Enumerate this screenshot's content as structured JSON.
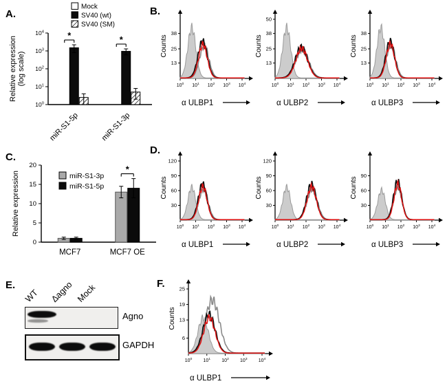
{
  "figure_labels": {
    "a": "A.",
    "b": "B.",
    "c": "C.",
    "d": "D.",
    "e": "E.",
    "f": "F."
  },
  "colors": {
    "bar_black": "#0b0b0b",
    "bar_gray": "#a9a9a9",
    "flow_fill_gray": "#cccccc",
    "flow_line_gray": "#8a8a8a",
    "flow_line_black": "#0f0f0f",
    "flow_line_red": "#e11212"
  },
  "panel_e": {
    "lanes": [
      "WT",
      "Δagno",
      "Mock"
    ],
    "blots": [
      {
        "label": "Agno"
      },
      {
        "label": "GAPDH"
      }
    ]
  },
  "chart_data": [
    {
      "id": "A",
      "type": "bar",
      "scale": "log",
      "ylabel_lines": [
        "Relative expression",
        "(log scale)"
      ],
      "ylim": [
        1,
        10000
      ],
      "yticks_exponents": [
        0,
        1,
        2,
        3,
        4
      ],
      "categories": [
        "miR-S1-5p",
        "miR-S1-3p"
      ],
      "series": [
        {
          "name": "Mock",
          "style": "white",
          "values": [
            1,
            1
          ],
          "errors": [
            0,
            0
          ]
        },
        {
          "name": "SV40 (wt)",
          "style": "black",
          "values": [
            1500,
            950
          ],
          "errors": [
            700,
            350
          ]
        },
        {
          "name": "SV40 (SM)",
          "style": "hatch",
          "values": [
            2.5,
            5
          ],
          "errors": [
            1.5,
            3
          ]
        }
      ],
      "significance": [
        {
          "category": 0,
          "between": [
            0,
            1
          ],
          "label": "*"
        },
        {
          "category": 1,
          "between": [
            0,
            1
          ],
          "label": "*"
        }
      ],
      "legend_position": "top"
    },
    {
      "id": "C",
      "type": "bar",
      "scale": "linear",
      "ylabel_lines": [
        "Relative expression"
      ],
      "ylim": [
        0,
        20
      ],
      "yticks": [
        0,
        5,
        10,
        15,
        20
      ],
      "categories": [
        "MCF7",
        "MCF7 OE"
      ],
      "series": [
        {
          "name": "miR-S1-3p",
          "style": "gray",
          "values": [
            1,
            13
          ],
          "errors": [
            0.3,
            1.5
          ]
        },
        {
          "name": "miR-S1-5p",
          "style": "black",
          "values": [
            1,
            14
          ],
          "errors": [
            0.3,
            2.5
          ]
        }
      ],
      "significance": [
        {
          "category": 1,
          "between": [
            0,
            1
          ],
          "label": "*"
        }
      ],
      "legend_position": "inside"
    },
    {
      "id": "B1",
      "type": "flow_histogram",
      "xlabel": "α ULBP1",
      "ylabel": "Counts",
      "ylim": [
        0,
        50
      ],
      "yticks": [
        13,
        25,
        38
      ],
      "xtick_exponents": [
        0,
        1,
        2,
        3,
        4
      ],
      "curves": [
        {
          "style": "filled-gray",
          "peak_log10": 0.75,
          "sd_log10": 0.26,
          "height_fraction": 0.85
        },
        {
          "style": "open-gray",
          "peak_log10": 1.55,
          "sd_log10": 0.3,
          "height_fraction": 0.55
        },
        {
          "style": "open-black",
          "peak_log10": 1.45,
          "sd_log10": 0.3,
          "height_fraction": 0.62
        },
        {
          "style": "open-red",
          "peak_log10": 1.47,
          "sd_log10": 0.28,
          "height_fraction": 0.57
        }
      ]
    },
    {
      "id": "B2",
      "type": "flow_histogram",
      "xlabel": "α ULBP2",
      "ylabel": "Counts",
      "ylim": [
        0,
        50
      ],
      "yticks": [
        13,
        25,
        38,
        50
      ],
      "xtick_exponents": [
        0,
        1,
        2,
        3,
        4
      ],
      "curves": [
        {
          "style": "filled-gray",
          "peak_log10": 0.75,
          "sd_log10": 0.26,
          "height_fraction": 0.85
        },
        {
          "style": "open-gray",
          "peak_log10": 1.75,
          "sd_log10": 0.42,
          "height_fraction": 0.48
        },
        {
          "style": "open-black",
          "peak_log10": 1.7,
          "sd_log10": 0.4,
          "height_fraction": 0.52
        },
        {
          "style": "open-red",
          "peak_log10": 1.72,
          "sd_log10": 0.38,
          "height_fraction": 0.5
        }
      ]
    },
    {
      "id": "B3",
      "type": "flow_histogram",
      "xlabel": "α ULBP3",
      "ylabel": "Counts",
      "ylim": [
        0,
        50
      ],
      "yticks": [
        13,
        25,
        38
      ],
      "xtick_exponents": [
        0,
        1,
        2,
        3,
        4
      ],
      "curves": [
        {
          "style": "filled-gray",
          "peak_log10": 0.7,
          "sd_log10": 0.25,
          "height_fraction": 0.85
        },
        {
          "style": "open-gray",
          "peak_log10": 1.35,
          "sd_log10": 0.3,
          "height_fraction": 0.55
        },
        {
          "style": "open-black",
          "peak_log10": 1.3,
          "sd_log10": 0.28,
          "height_fraction": 0.62
        },
        {
          "style": "open-red",
          "peak_log10": 1.32,
          "sd_log10": 0.27,
          "height_fraction": 0.58
        }
      ]
    },
    {
      "id": "D1",
      "type": "flow_histogram",
      "xlabel": "α ULBP1",
      "ylabel": "Counts",
      "ylim": [
        0,
        120
      ],
      "yticks": [
        30,
        60,
        90,
        120
      ],
      "xtick_exponents": [
        0,
        1,
        2,
        3,
        4
      ],
      "curves": [
        {
          "style": "filled-gray",
          "peak_log10": 0.75,
          "sd_log10": 0.25,
          "height_fraction": 0.55
        },
        {
          "style": "open-gray",
          "peak_log10": 1.5,
          "sd_log10": 0.3,
          "height_fraction": 0.52
        },
        {
          "style": "open-black",
          "peak_log10": 1.45,
          "sd_log10": 0.28,
          "height_fraction": 0.6
        },
        {
          "style": "open-red",
          "peak_log10": 1.47,
          "sd_log10": 0.27,
          "height_fraction": 0.56
        }
      ]
    },
    {
      "id": "D2",
      "type": "flow_histogram",
      "xlabel": "α ULBP2",
      "ylabel": "Counts",
      "ylim": [
        0,
        120
      ],
      "yticks": [
        30,
        60,
        90,
        120
      ],
      "xtick_exponents": [
        0,
        1,
        2,
        3,
        4
      ],
      "curves": [
        {
          "style": "filled-gray",
          "peak_log10": 0.75,
          "sd_log10": 0.25,
          "height_fraction": 0.55
        },
        {
          "style": "open-gray",
          "peak_log10": 2.4,
          "sd_log10": 0.33,
          "height_fraction": 0.52
        },
        {
          "style": "open-black",
          "peak_log10": 2.35,
          "sd_log10": 0.31,
          "height_fraction": 0.6
        },
        {
          "style": "open-red",
          "peak_log10": 2.37,
          "sd_log10": 0.3,
          "height_fraction": 0.56
        }
      ]
    },
    {
      "id": "D3",
      "type": "flow_histogram",
      "xlabel": "α ULBP3",
      "ylabel": "Counts",
      "ylim": [
        0,
        120
      ],
      "yticks": [
        30,
        60,
        90
      ],
      "xtick_exponents": [
        0,
        1,
        2,
        3,
        4
      ],
      "curves": [
        {
          "style": "filled-gray",
          "peak_log10": 0.75,
          "sd_log10": 0.25,
          "height_fraction": 0.5
        },
        {
          "style": "open-gray",
          "peak_log10": 1.8,
          "sd_log10": 0.27,
          "height_fraction": 0.55
        },
        {
          "style": "open-black",
          "peak_log10": 1.78,
          "sd_log10": 0.26,
          "height_fraction": 0.65
        },
        {
          "style": "open-red",
          "peak_log10": 1.8,
          "sd_log10": 0.25,
          "height_fraction": 0.6
        }
      ]
    },
    {
      "id": "F",
      "type": "flow_histogram",
      "xlabel": "α ULBP1",
      "ylabel": "Counts",
      "ylim": [
        0,
        25
      ],
      "yticks": [
        6,
        13,
        19,
        25
      ],
      "xtick_exponents": [
        0,
        1,
        2,
        3,
        4
      ],
      "curves": [
        {
          "style": "filled-gray",
          "peak_log10": 0.8,
          "sd_log10": 0.28,
          "height_fraction": 0.55
        },
        {
          "style": "open-gray",
          "peak_log10": 1.3,
          "sd_log10": 0.38,
          "height_fraction": 0.82
        },
        {
          "style": "open-black",
          "peak_log10": 1.12,
          "sd_log10": 0.33,
          "height_fraction": 0.6
        },
        {
          "style": "open-red",
          "peak_log10": 1.14,
          "sd_log10": 0.31,
          "height_fraction": 0.55
        }
      ]
    }
  ]
}
